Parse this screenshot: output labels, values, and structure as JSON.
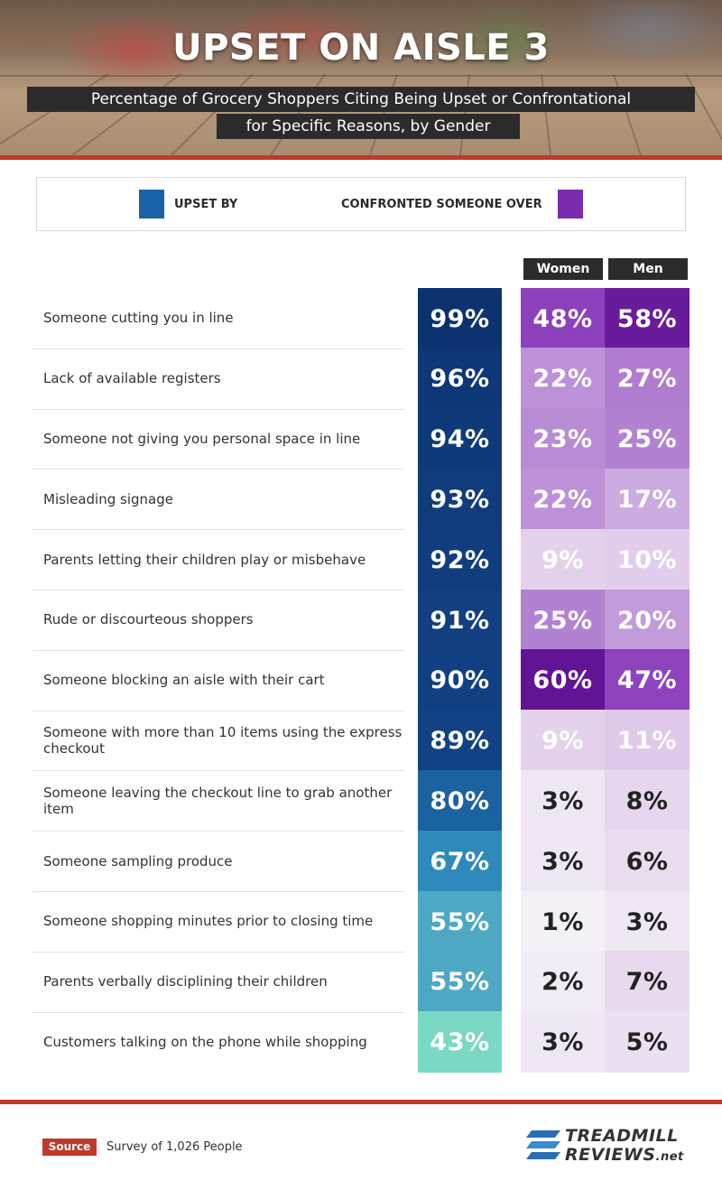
{
  "header": {
    "title": "UPSET ON AISLE 3",
    "subtitle_line1": "Percentage of Grocery Shoppers Citing Being Upset or Confrontational",
    "subtitle_line2": "for Specific Reasons, by Gender"
  },
  "legend": {
    "upset_label": "UPSET BY",
    "confronted_label": "CONFRONTED SOMEONE OVER",
    "upset_color": "#1a63a8",
    "confronted_color": "#7b2cad"
  },
  "columns": {
    "women": "Women",
    "men": "Men"
  },
  "chart_data": {
    "type": "table",
    "title": "UPSET ON AISLE 3",
    "subtitle": "Percentage of Grocery Shoppers Citing Being Upset or Confrontational for Specific Reasons, by Gender",
    "categories": [
      "Someone cutting you in line",
      "Lack of available registers",
      "Someone not giving you personal space in line",
      "Misleading signage",
      "Parents letting their children play or misbehave",
      "Rude or discourteous shoppers",
      "Someone blocking an aisle with their cart",
      "Someone with more than 10 items using the express checkout",
      "Someone leaving the checkout line to grab another item",
      "Someone sampling produce",
      "Someone shopping minutes prior to closing time",
      "Parents verbally disciplining their children",
      "Customers talking on the phone while shopping"
    ],
    "series": [
      {
        "name": "UPSET BY",
        "values": [
          99,
          96,
          94,
          93,
          92,
          91,
          90,
          89,
          80,
          67,
          55,
          55,
          43
        ]
      },
      {
        "name": "Women",
        "values": [
          48,
          22,
          23,
          22,
          9,
          25,
          60,
          9,
          3,
          3,
          1,
          2,
          3
        ]
      },
      {
        "name": "Men",
        "values": [
          58,
          27,
          25,
          17,
          10,
          20,
          47,
          11,
          8,
          6,
          3,
          7,
          5
        ]
      }
    ],
    "value_suffix": "%"
  },
  "footer": {
    "source_tag": "Source",
    "source_text": "Survey of 1,026 People",
    "logo_line1": "TREADMILL",
    "logo_line2": "REVIEWS",
    "logo_suffix": ".net"
  }
}
